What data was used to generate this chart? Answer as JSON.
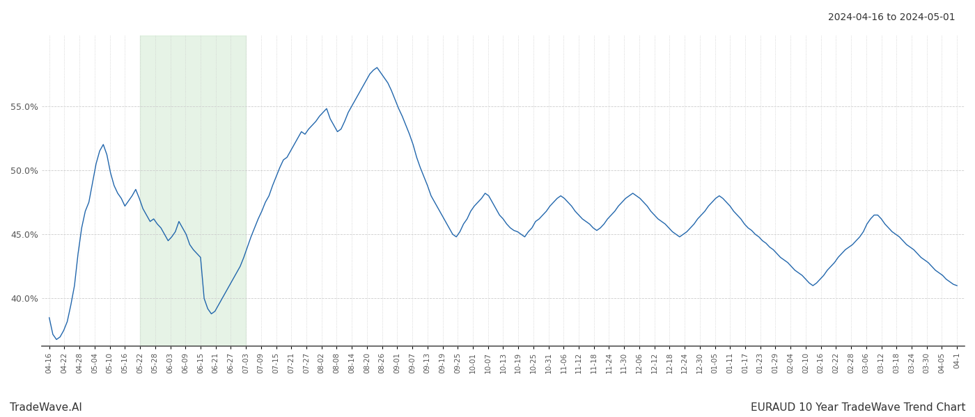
{
  "title_topright": "2024-04-16 to 2024-05-01",
  "label_bottomleft": "TradeWave.AI",
  "label_bottomright": "EURAUD 10 Year TradeWave Trend Chart",
  "line_color": "#2166ac",
  "shade_color": "#c8e6c9",
  "shade_alpha": 0.45,
  "background_color": "#ffffff",
  "grid_color": "#cccccc",
  "ylabel_values": [
    0.4,
    0.45,
    0.5,
    0.55
  ],
  "ylim": [
    0.363,
    0.605
  ],
  "x_labels": [
    "04-16",
    "04-22",
    "04-28",
    "05-04",
    "05-10",
    "05-16",
    "05-22",
    "05-28",
    "06-03",
    "06-09",
    "06-15",
    "06-21",
    "06-27",
    "07-03",
    "07-09",
    "07-15",
    "07-21",
    "07-27",
    "08-02",
    "08-08",
    "08-14",
    "08-20",
    "08-26",
    "09-01",
    "09-07",
    "09-13",
    "09-19",
    "09-25",
    "10-01",
    "10-07",
    "10-13",
    "10-19",
    "10-25",
    "10-31",
    "11-06",
    "11-12",
    "11-18",
    "11-24",
    "11-30",
    "12-06",
    "12-12",
    "12-18",
    "12-24",
    "12-30",
    "01-05",
    "01-11",
    "01-17",
    "01-23",
    "01-29",
    "02-04",
    "02-10",
    "02-16",
    "02-22",
    "02-28",
    "03-06",
    "03-12",
    "03-18",
    "03-24",
    "03-30",
    "04-05",
    "04-1"
  ],
  "shade_xstart": 6,
  "shade_xend": 13,
  "y_data": [
    0.385,
    0.372,
    0.368,
    0.37,
    0.375,
    0.382,
    0.395,
    0.41,
    0.435,
    0.455,
    0.468,
    0.475,
    0.49,
    0.505,
    0.515,
    0.52,
    0.512,
    0.498,
    0.488,
    0.482,
    0.478,
    0.472,
    0.476,
    0.48,
    0.485,
    0.478,
    0.47,
    0.465,
    0.46,
    0.462,
    0.458,
    0.455,
    0.45,
    0.445,
    0.448,
    0.452,
    0.46,
    0.455,
    0.45,
    0.442,
    0.438,
    0.435,
    0.432,
    0.4,
    0.392,
    0.388,
    0.39,
    0.395,
    0.4,
    0.405,
    0.41,
    0.415,
    0.42,
    0.425,
    0.432,
    0.44,
    0.448,
    0.455,
    0.462,
    0.468,
    0.475,
    0.48,
    0.488,
    0.495,
    0.502,
    0.508,
    0.51,
    0.515,
    0.52,
    0.525,
    0.53,
    0.528,
    0.532,
    0.535,
    0.538,
    0.542,
    0.545,
    0.548,
    0.54,
    0.535,
    0.53,
    0.532,
    0.538,
    0.545,
    0.55,
    0.555,
    0.56,
    0.565,
    0.57,
    0.575,
    0.578,
    0.58,
    0.576,
    0.572,
    0.568,
    0.562,
    0.555,
    0.548,
    0.542,
    0.535,
    0.528,
    0.52,
    0.51,
    0.502,
    0.495,
    0.488,
    0.48,
    0.475,
    0.47,
    0.465,
    0.46,
    0.455,
    0.45,
    0.448,
    0.452,
    0.458,
    0.462,
    0.468,
    0.472,
    0.475,
    0.478,
    0.482,
    0.48,
    0.475,
    0.47,
    0.465,
    0.462,
    0.458,
    0.455,
    0.453,
    0.452,
    0.45,
    0.448,
    0.452,
    0.455,
    0.46,
    0.462,
    0.465,
    0.468,
    0.472,
    0.475,
    0.478,
    0.48,
    0.478,
    0.475,
    0.472,
    0.468,
    0.465,
    0.462,
    0.46,
    0.458,
    0.455,
    0.453,
    0.455,
    0.458,
    0.462,
    0.465,
    0.468,
    0.472,
    0.475,
    0.478,
    0.48,
    0.482,
    0.48,
    0.478,
    0.475,
    0.472,
    0.468,
    0.465,
    0.462,
    0.46,
    0.458,
    0.455,
    0.452,
    0.45,
    0.448,
    0.45,
    0.452,
    0.455,
    0.458,
    0.462,
    0.465,
    0.468,
    0.472,
    0.475,
    0.478,
    0.48,
    0.478,
    0.475,
    0.472,
    0.468,
    0.465,
    0.462,
    0.458,
    0.455,
    0.453,
    0.45,
    0.448,
    0.445,
    0.443,
    0.44,
    0.438,
    0.435,
    0.432,
    0.43,
    0.428,
    0.425,
    0.422,
    0.42,
    0.418,
    0.415,
    0.412,
    0.41,
    0.412,
    0.415,
    0.418,
    0.422,
    0.425,
    0.428,
    0.432,
    0.435,
    0.438,
    0.44,
    0.442,
    0.445,
    0.448,
    0.452,
    0.458,
    0.462,
    0.465,
    0.465,
    0.462,
    0.458,
    0.455,
    0.452,
    0.45,
    0.448,
    0.445,
    0.442,
    0.44,
    0.438,
    0.435,
    0.432,
    0.43,
    0.428,
    0.425,
    0.422,
    0.42,
    0.418,
    0.415,
    0.413,
    0.411,
    0.41
  ]
}
